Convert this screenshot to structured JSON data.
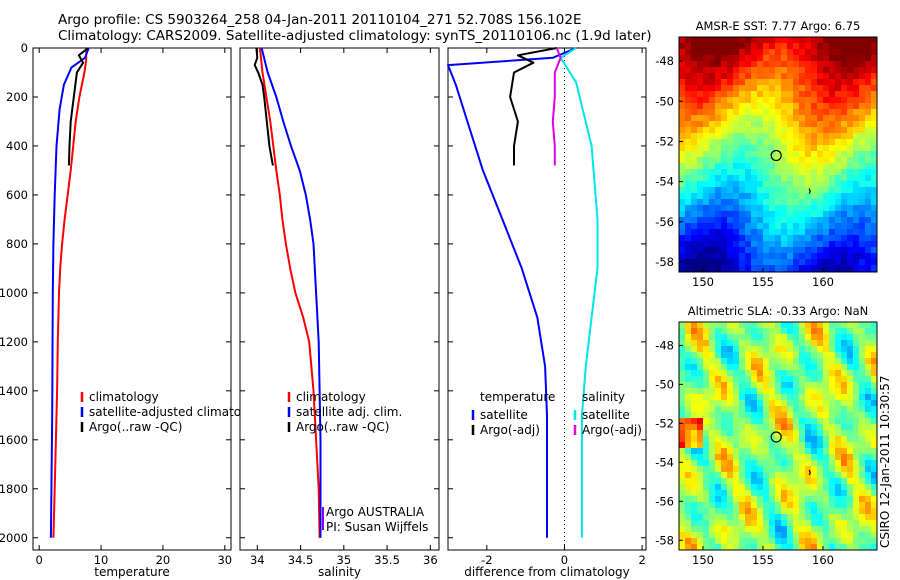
{
  "title_lines": [
    "Argo profile: CS 5903264_258 04-Jan-2011 20110104_271 52.708S 156.102E",
    "Climatology: CARS2009. Satellite-adjusted climatology: synTS_20110106.nc (1.9d later)"
  ],
  "side_label": "CSIRO 12-Jan-2011 10:30:57",
  "chart_data": [
    {
      "type": "line",
      "xlabel": "temperature",
      "ylabel": "",
      "xlim": [
        -1,
        31
      ],
      "ylim": [
        2050,
        0
      ],
      "xticks": [
        0,
        10,
        20,
        30
      ],
      "yticks": [
        0,
        200,
        400,
        600,
        800,
        1000,
        1200,
        1400,
        1600,
        1800,
        2000
      ],
      "legend": [
        {
          "name": "climatology",
          "color": "#ff0000"
        },
        {
          "name": "satellite-adjusted climatology",
          "color": "#0000ff"
        },
        {
          "name": "Argo(..raw -QC)",
          "color": "#000000"
        }
      ],
      "series": [
        {
          "name": "climatology",
          "color": "#ff0000",
          "points": [
            [
              7.6,
              0
            ],
            [
              7.6,
              50
            ],
            [
              7.3,
              100
            ],
            [
              6.5,
              200
            ],
            [
              5.9,
              300
            ],
            [
              5.5,
              400
            ],
            [
              5.1,
              500
            ],
            [
              4.6,
              600
            ],
            [
              4.1,
              700
            ],
            [
              3.7,
              800
            ],
            [
              3.4,
              900
            ],
            [
              3.2,
              1000
            ],
            [
              3.0,
              1200
            ],
            [
              2.9,
              1400
            ],
            [
              2.7,
              1600
            ],
            [
              2.5,
              1800
            ],
            [
              2.3,
              2000
            ]
          ]
        },
        {
          "name": "satellite-adjusted climatology",
          "color": "#0000ff",
          "points": [
            [
              8.0,
              0
            ],
            [
              7.4,
              40
            ],
            [
              5.2,
              80
            ],
            [
              4.0,
              150
            ],
            [
              3.3,
              250
            ],
            [
              2.8,
              400
            ],
            [
              2.5,
              600
            ],
            [
              2.3,
              800
            ],
            [
              2.2,
              1000
            ],
            [
              2.1,
              1500
            ],
            [
              1.9,
              2000
            ]
          ]
        },
        {
          "name": "Argo(..raw -QC)",
          "color": "#000000",
          "points": [
            [
              7.9,
              0
            ],
            [
              6.4,
              30
            ],
            [
              7.1,
              60
            ],
            [
              6.1,
              100
            ],
            [
              5.6,
              200
            ],
            [
              5.1,
              300
            ],
            [
              4.9,
              400
            ],
            [
              4.8,
              480
            ]
          ]
        }
      ]
    },
    {
      "type": "line",
      "xlabel": "salinity",
      "ylabel": "",
      "xlim": [
        33.8,
        36.1
      ],
      "ylim": [
        2050,
        0
      ],
      "xticks": [
        34,
        34.5,
        35,
        35.5,
        36
      ],
      "legend": [
        {
          "name": "climatology",
          "color": "#ff0000"
        },
        {
          "name": "satellite adj. clim.",
          "color": "#0000ff"
        },
        {
          "name": "Argo(..raw -QC)",
          "color": "#000000"
        }
      ],
      "annotations": [
        "Argo AUSTRALIA",
        "PI: Susan Wijffels"
      ],
      "series": [
        {
          "name": "climatology",
          "color": "#ff0000",
          "points": [
            [
              34.03,
              0
            ],
            [
              34.06,
              100
            ],
            [
              34.15,
              300
            ],
            [
              34.22,
              500
            ],
            [
              34.26,
              600
            ],
            [
              34.29,
              700
            ],
            [
              34.33,
              800
            ],
            [
              34.38,
              900
            ],
            [
              34.44,
              1000
            ],
            [
              34.53,
              1100
            ],
            [
              34.6,
              1200
            ],
            [
              34.65,
              1400
            ],
            [
              34.68,
              1600
            ],
            [
              34.71,
              1800
            ],
            [
              34.72,
              2000
            ]
          ]
        },
        {
          "name": "satellite adj. clim.",
          "color": "#0000ff",
          "points": [
            [
              34.05,
              0
            ],
            [
              34.12,
              100
            ],
            [
              34.22,
              200
            ],
            [
              34.3,
              300
            ],
            [
              34.39,
              400
            ],
            [
              34.49,
              500
            ],
            [
              34.56,
              600
            ],
            [
              34.61,
              700
            ],
            [
              34.65,
              800
            ],
            [
              34.68,
              1000
            ],
            [
              34.71,
              1200
            ],
            [
              34.72,
              1400
            ],
            [
              34.73,
              1600
            ],
            [
              34.73,
              2000
            ]
          ]
        },
        {
          "name": "Argo(..raw -QC)",
          "color": "#000000",
          "points": [
            [
              33.99,
              0
            ],
            [
              34.0,
              40
            ],
            [
              33.97,
              70
            ],
            [
              34.01,
              100
            ],
            [
              34.06,
              150
            ],
            [
              34.08,
              200
            ],
            [
              34.11,
              300
            ],
            [
              34.14,
              400
            ],
            [
              34.18,
              480
            ]
          ]
        }
      ]
    },
    {
      "type": "line",
      "xlabel": "difference from climatology",
      "ylabel": "",
      "xlim": [
        -3,
        2.1
      ],
      "ylim": [
        2050,
        0
      ],
      "xticks": [
        -2,
        0,
        2
      ],
      "legend_groups": [
        {
          "title": "temperature",
          "items": [
            {
              "name": "satellite",
              "color": "#0000ff"
            },
            {
              "name": "Argo(-adj)",
              "color": "#000000"
            }
          ]
        },
        {
          "title": "salinity",
          "items": [
            {
              "name": "satellite",
              "color": "#00e5e5"
            },
            {
              "name": "Argo(-adj)",
              "color": "#e000e0"
            }
          ]
        }
      ],
      "series": [
        {
          "name": "temperature satellite",
          "color": "#0000ff",
          "points": [
            [
              0.3,
              0
            ],
            [
              -0.3,
              40
            ],
            [
              -3.0,
              70
            ],
            [
              -2.8,
              150
            ],
            [
              -2.5,
              300
            ],
            [
              -2.1,
              500
            ],
            [
              -1.6,
              700
            ],
            [
              -1.1,
              900
            ],
            [
              -0.7,
              1100
            ],
            [
              -0.5,
              1300
            ],
            [
              -0.45,
              1500
            ],
            [
              -0.45,
              2000
            ]
          ]
        },
        {
          "name": "temperature Argo(-adj)",
          "color": "#000000",
          "points": [
            [
              -0.2,
              0
            ],
            [
              -1.2,
              30
            ],
            [
              -0.8,
              60
            ],
            [
              -1.3,
              100
            ],
            [
              -1.4,
              200
            ],
            [
              -1.2,
              300
            ],
            [
              -1.3,
              400
            ],
            [
              -1.3,
              480
            ]
          ]
        },
        {
          "name": "salinity satellite",
          "color": "#00e5e5",
          "points": [
            [
              0.3,
              0
            ],
            [
              -0.1,
              40
            ],
            [
              0.3,
              140
            ],
            [
              0.7,
              400
            ],
            [
              0.85,
              700
            ],
            [
              0.85,
              900
            ],
            [
              0.7,
              1100
            ],
            [
              0.55,
              1300
            ],
            [
              0.45,
              1500
            ],
            [
              0.45,
              2000
            ]
          ]
        },
        {
          "name": "salinity Argo(-adj)",
          "color": "#e000e0",
          "points": [
            [
              -0.2,
              0
            ],
            [
              -0.1,
              40
            ],
            [
              -0.25,
              100
            ],
            [
              -0.25,
              200
            ],
            [
              -0.3,
              300
            ],
            [
              -0.25,
              400
            ],
            [
              -0.25,
              480
            ]
          ]
        }
      ]
    },
    {
      "type": "heatmap",
      "title": "AMSR-E SST: 7.77  Argo: 6.75",
      "xlim": [
        148,
        164.5
      ],
      "ylim": [
        -58.5,
        -46.8
      ],
      "xticks": [
        150,
        155,
        160
      ],
      "yticks": [
        -48,
        -50,
        -52,
        -54,
        -56,
        -58
      ],
      "marker": {
        "lon": 156.1,
        "lat": -52.7
      }
    },
    {
      "type": "heatmap",
      "title": "Altimetric SLA: -0.33  Argo: NaN",
      "xlim": [
        148,
        164.5
      ],
      "ylim": [
        -58.5,
        -46.8
      ],
      "xticks": [
        150,
        155,
        160
      ],
      "yticks": [
        -48,
        -50,
        -52,
        -54,
        -56,
        -58
      ],
      "marker": {
        "lon": 156.1,
        "lat": -52.7
      }
    }
  ]
}
